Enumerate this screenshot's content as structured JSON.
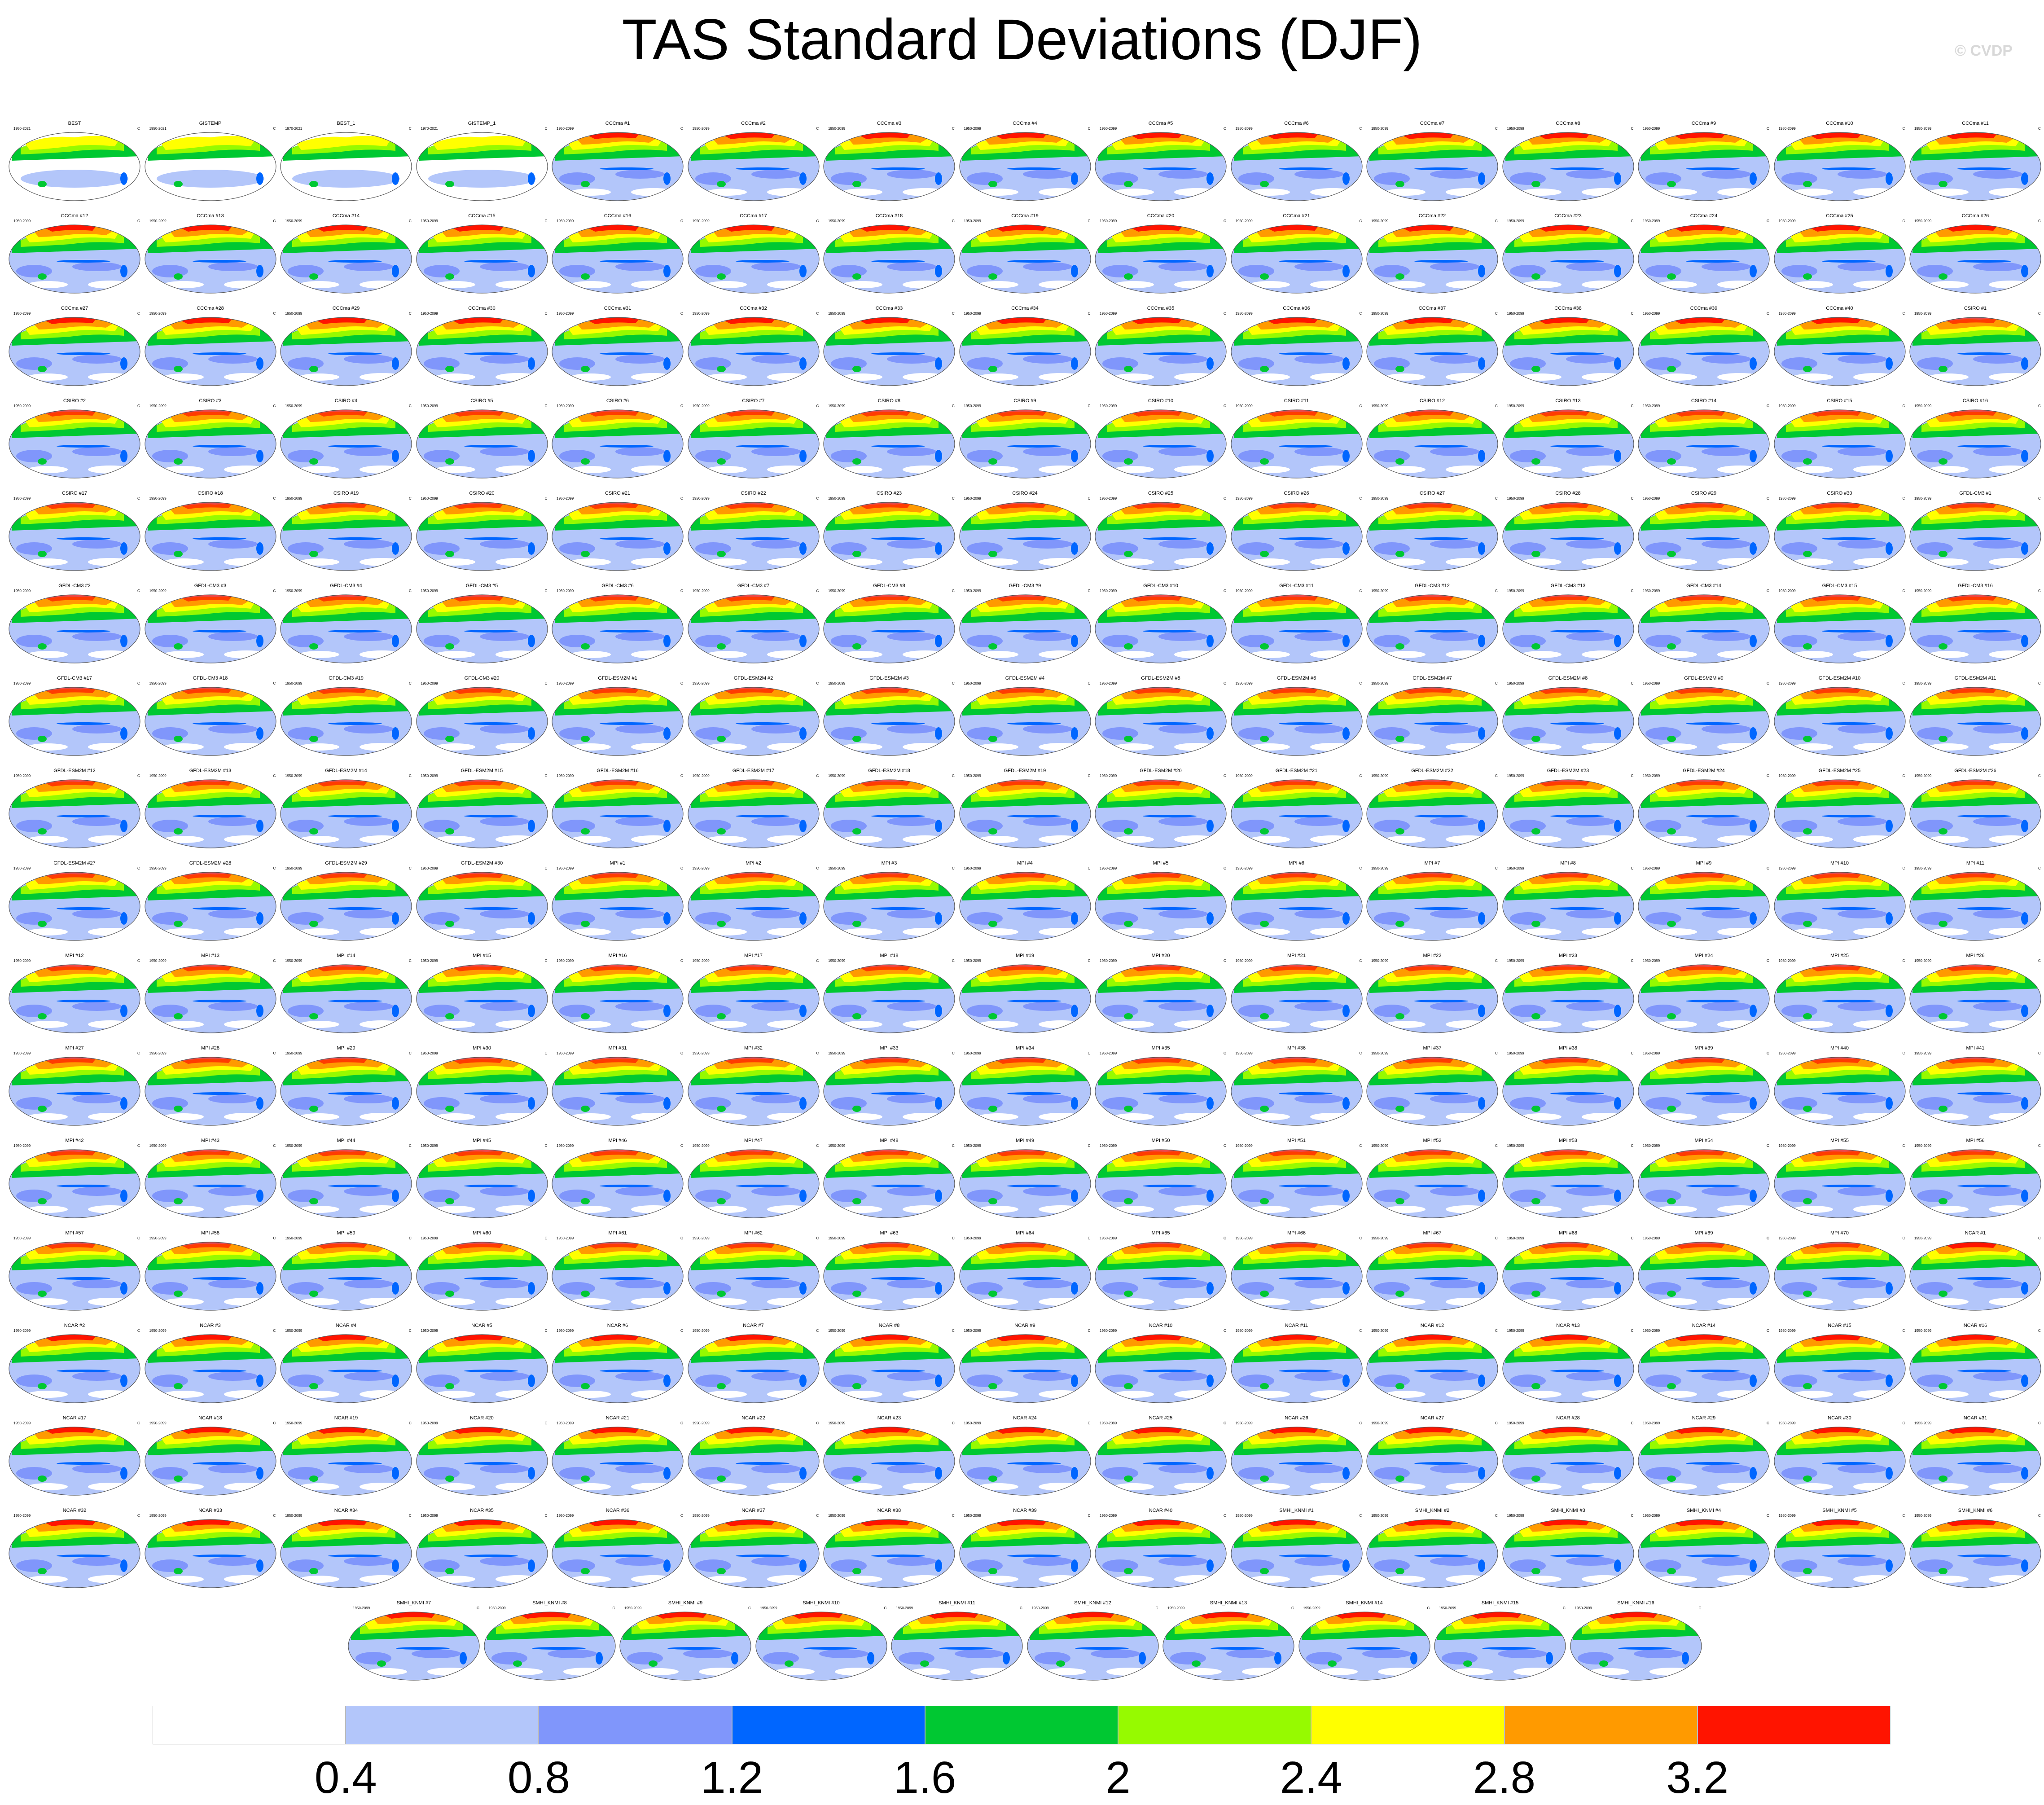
{
  "title": "TAS Standard Deviations (DJF)",
  "credit": "© CVDP",
  "unit": "C",
  "panels": [
    {
      "name": "BEST",
      "years": "1950-2021"
    },
    {
      "name": "GISTEMP",
      "years": "1950-2021"
    },
    {
      "name": "BEST_1",
      "years": "1970-2021"
    },
    {
      "name": "GISTEMP_1",
      "years": "1970-2021"
    },
    {
      "name": "CCCma #1",
      "years": "1950-2099"
    },
    {
      "name": "CCCma #2",
      "years": "1950-2099"
    },
    {
      "name": "CCCma #3",
      "years": "1950-2099"
    },
    {
      "name": "CCCma #4",
      "years": "1950-2099"
    },
    {
      "name": "CCCma #5",
      "years": "1950-2099"
    },
    {
      "name": "CCCma #6",
      "years": "1950-2099"
    },
    {
      "name": "CCCma #7",
      "years": "1950-2099"
    },
    {
      "name": "CCCma #8",
      "years": "1950-2099"
    },
    {
      "name": "CCCma #9",
      "years": "1950-2099"
    },
    {
      "name": "CCCma #10",
      "years": "1950-2099"
    },
    {
      "name": "CCCma #11",
      "years": "1950-2099"
    },
    {
      "name": "CCCma #12",
      "years": "1950-2099"
    },
    {
      "name": "CCCma #13",
      "years": "1950-2099"
    },
    {
      "name": "CCCma #14",
      "years": "1950-2099"
    },
    {
      "name": "CCCma #15",
      "years": "1950-2099"
    },
    {
      "name": "CCCma #16",
      "years": "1950-2099"
    },
    {
      "name": "CCCma #17",
      "years": "1950-2099"
    },
    {
      "name": "CCCma #18",
      "years": "1950-2099"
    },
    {
      "name": "CCCma #19",
      "years": "1950-2099"
    },
    {
      "name": "CCCma #20",
      "years": "1950-2099"
    },
    {
      "name": "CCCma #21",
      "years": "1950-2099"
    },
    {
      "name": "CCCma #22",
      "years": "1950-2099"
    },
    {
      "name": "CCCma #23",
      "years": "1950-2099"
    },
    {
      "name": "CCCma #24",
      "years": "1950-2099"
    },
    {
      "name": "CCCma #25",
      "years": "1950-2099"
    },
    {
      "name": "CCCma #26",
      "years": "1950-2099"
    },
    {
      "name": "CCCma #27",
      "years": "1950-2099"
    },
    {
      "name": "CCCma #28",
      "years": "1950-2099"
    },
    {
      "name": "CCCma #29",
      "years": "1950-2099"
    },
    {
      "name": "CCCma #30",
      "years": "1950-2099"
    },
    {
      "name": "CCCma #31",
      "years": "1950-2099"
    },
    {
      "name": "CCCma #32",
      "years": "1950-2099"
    },
    {
      "name": "CCCma #33",
      "years": "1950-2099"
    },
    {
      "name": "CCCma #34",
      "years": "1950-2099"
    },
    {
      "name": "CCCma #35",
      "years": "1950-2099"
    },
    {
      "name": "CCCma #36",
      "years": "1950-2099"
    },
    {
      "name": "CCCma #37",
      "years": "1950-2099"
    },
    {
      "name": "CCCma #38",
      "years": "1950-2099"
    },
    {
      "name": "CCCma #39",
      "years": "1950-2099"
    },
    {
      "name": "CCCma #40",
      "years": "1950-2099"
    },
    {
      "name": "CSIRO #1",
      "years": "1950-2099"
    },
    {
      "name": "CSIRO #2",
      "years": "1950-2099"
    },
    {
      "name": "CSIRO #3",
      "years": "1950-2099"
    },
    {
      "name": "CSIRO #4",
      "years": "1950-2099"
    },
    {
      "name": "CSIRO #5",
      "years": "1950-2099"
    },
    {
      "name": "CSIRO #6",
      "years": "1950-2099"
    },
    {
      "name": "CSIRO #7",
      "years": "1950-2099"
    },
    {
      "name": "CSIRO #8",
      "years": "1950-2099"
    },
    {
      "name": "CSIRO #9",
      "years": "1950-2099"
    },
    {
      "name": "CSIRO #10",
      "years": "1950-2099"
    },
    {
      "name": "CSIRO #11",
      "years": "1950-2099"
    },
    {
      "name": "CSIRO #12",
      "years": "1950-2099"
    },
    {
      "name": "CSIRO #13",
      "years": "1950-2099"
    },
    {
      "name": "CSIRO #14",
      "years": "1950-2099"
    },
    {
      "name": "CSIRO #15",
      "years": "1950-2099"
    },
    {
      "name": "CSIRO #16",
      "years": "1950-2099"
    },
    {
      "name": "CSIRO #17",
      "years": "1950-2099"
    },
    {
      "name": "CSIRO #18",
      "years": "1950-2099"
    },
    {
      "name": "CSIRO #19",
      "years": "1950-2099"
    },
    {
      "name": "CSIRO #20",
      "years": "1950-2099"
    },
    {
      "name": "CSIRO #21",
      "years": "1950-2099"
    },
    {
      "name": "CSIRO #22",
      "years": "1950-2099"
    },
    {
      "name": "CSIRO #23",
      "years": "1950-2099"
    },
    {
      "name": "CSIRO #24",
      "years": "1950-2099"
    },
    {
      "name": "CSIRO #25",
      "years": "1950-2099"
    },
    {
      "name": "CSIRO #26",
      "years": "1950-2099"
    },
    {
      "name": "CSIRO #27",
      "years": "1950-2099"
    },
    {
      "name": "CSIRO #28",
      "years": "1950-2099"
    },
    {
      "name": "CSIRO #29",
      "years": "1950-2099"
    },
    {
      "name": "CSIRO #30",
      "years": "1950-2099"
    },
    {
      "name": "GFDL-CM3 #1",
      "years": "1950-2099"
    },
    {
      "name": "GFDL-CM3 #2",
      "years": "1950-2099"
    },
    {
      "name": "GFDL-CM3 #3",
      "years": "1950-2099"
    },
    {
      "name": "GFDL-CM3 #4",
      "years": "1950-2099"
    },
    {
      "name": "GFDL-CM3 #5",
      "years": "1950-2099"
    },
    {
      "name": "GFDL-CM3 #6",
      "years": "1950-2099"
    },
    {
      "name": "GFDL-CM3 #7",
      "years": "1950-2099"
    },
    {
      "name": "GFDL-CM3 #8",
      "years": "1950-2099"
    },
    {
      "name": "GFDL-CM3 #9",
      "years": "1950-2099"
    },
    {
      "name": "GFDL-CM3 #10",
      "years": "1950-2099"
    },
    {
      "name": "GFDL-CM3 #11",
      "years": "1950-2099"
    },
    {
      "name": "GFDL-CM3 #12",
      "years": "1950-2099"
    },
    {
      "name": "GFDL-CM3 #13",
      "years": "1950-2099"
    },
    {
      "name": "GFDL-CM3 #14",
      "years": "1950-2099"
    },
    {
      "name": "GFDL-CM3 #15",
      "years": "1950-2099"
    },
    {
      "name": "GFDL-CM3 #16",
      "years": "1950-2099"
    },
    {
      "name": "GFDL-CM3 #17",
      "years": "1950-2099"
    },
    {
      "name": "GFDL-CM3 #18",
      "years": "1950-2099"
    },
    {
      "name": "GFDL-CM3 #19",
      "years": "1950-2099"
    },
    {
      "name": "GFDL-CM3 #20",
      "years": "1950-2099"
    },
    {
      "name": "GFDL-ESM2M #1",
      "years": "1950-2099"
    },
    {
      "name": "GFDL-ESM2M #2",
      "years": "1950-2099"
    },
    {
      "name": "GFDL-ESM2M #3",
      "years": "1950-2099"
    },
    {
      "name": "GFDL-ESM2M #4",
      "years": "1950-2099"
    },
    {
      "name": "GFDL-ESM2M #5",
      "years": "1950-2099"
    },
    {
      "name": "GFDL-ESM2M #6",
      "years": "1950-2099"
    },
    {
      "name": "GFDL-ESM2M #7",
      "years": "1950-2099"
    },
    {
      "name": "GFDL-ESM2M #8",
      "years": "1950-2099"
    },
    {
      "name": "GFDL-ESM2M #9",
      "years": "1950-2099"
    },
    {
      "name": "GFDL-ESM2M #10",
      "years": "1950-2099"
    },
    {
      "name": "GFDL-ESM2M #11",
      "years": "1950-2099"
    },
    {
      "name": "GFDL-ESM2M #12",
      "years": "1950-2099"
    },
    {
      "name": "GFDL-ESM2M #13",
      "years": "1950-2099"
    },
    {
      "name": "GFDL-ESM2M #14",
      "years": "1950-2099"
    },
    {
      "name": "GFDL-ESM2M #15",
      "years": "1950-2099"
    },
    {
      "name": "GFDL-ESM2M #16",
      "years": "1950-2099"
    },
    {
      "name": "GFDL-ESM2M #17",
      "years": "1950-2099"
    },
    {
      "name": "GFDL-ESM2M #18",
      "years": "1950-2099"
    },
    {
      "name": "GFDL-ESM2M #19",
      "years": "1950-2099"
    },
    {
      "name": "GFDL-ESM2M #20",
      "years": "1950-2099"
    },
    {
      "name": "GFDL-ESM2M #21",
      "years": "1950-2099"
    },
    {
      "name": "GFDL-ESM2M #22",
      "years": "1950-2099"
    },
    {
      "name": "GFDL-ESM2M #23",
      "years": "1950-2099"
    },
    {
      "name": "GFDL-ESM2M #24",
      "years": "1950-2099"
    },
    {
      "name": "GFDL-ESM2M #25",
      "years": "1950-2099"
    },
    {
      "name": "GFDL-ESM2M #26",
      "years": "1950-2099"
    },
    {
      "name": "GFDL-ESM2M #27",
      "years": "1950-2099"
    },
    {
      "name": "GFDL-ESM2M #28",
      "years": "1950-2099"
    },
    {
      "name": "GFDL-ESM2M #29",
      "years": "1950-2099"
    },
    {
      "name": "GFDL-ESM2M #30",
      "years": "1950-2099"
    },
    {
      "name": "MPI #1",
      "years": "1950-2099"
    },
    {
      "name": "MPI #2",
      "years": "1950-2099"
    },
    {
      "name": "MPI #3",
      "years": "1950-2099"
    },
    {
      "name": "MPI #4",
      "years": "1950-2099"
    },
    {
      "name": "MPI #5",
      "years": "1950-2099"
    },
    {
      "name": "MPI #6",
      "years": "1950-2099"
    },
    {
      "name": "MPI #7",
      "years": "1950-2099"
    },
    {
      "name": "MPI #8",
      "years": "1950-2099"
    },
    {
      "name": "MPI #9",
      "years": "1950-2099"
    },
    {
      "name": "MPI #10",
      "years": "1950-2099"
    },
    {
      "name": "MPI #11",
      "years": "1950-2099"
    },
    {
      "name": "MPI #12",
      "years": "1950-2099"
    },
    {
      "name": "MPI #13",
      "years": "1950-2099"
    },
    {
      "name": "MPI #14",
      "years": "1950-2099"
    },
    {
      "name": "MPI #15",
      "years": "1950-2099"
    },
    {
      "name": "MPI #16",
      "years": "1950-2099"
    },
    {
      "name": "MPI #17",
      "years": "1950-2099"
    },
    {
      "name": "MPI #18",
      "years": "1950-2099"
    },
    {
      "name": "MPI #19",
      "years": "1950-2099"
    },
    {
      "name": "MPI #20",
      "years": "1950-2099"
    },
    {
      "name": "MPI #21",
      "years": "1950-2099"
    },
    {
      "name": "MPI #22",
      "years": "1950-2099"
    },
    {
      "name": "MPI #23",
      "years": "1950-2099"
    },
    {
      "name": "MPI #24",
      "years": "1950-2099"
    },
    {
      "name": "MPI #25",
      "years": "1950-2099"
    },
    {
      "name": "MPI #26",
      "years": "1950-2099"
    },
    {
      "name": "MPI #27",
      "years": "1950-2099"
    },
    {
      "name": "MPI #28",
      "years": "1950-2099"
    },
    {
      "name": "MPI #29",
      "years": "1950-2099"
    },
    {
      "name": "MPI #30",
      "years": "1950-2099"
    },
    {
      "name": "MPI #31",
      "years": "1950-2099"
    },
    {
      "name": "MPI #32",
      "years": "1950-2099"
    },
    {
      "name": "MPI #33",
      "years": "1950-2099"
    },
    {
      "name": "MPI #34",
      "years": "1950-2099"
    },
    {
      "name": "MPI #35",
      "years": "1950-2099"
    },
    {
      "name": "MPI #36",
      "years": "1950-2099"
    },
    {
      "name": "MPI #37",
      "years": "1950-2099"
    },
    {
      "name": "MPI #38",
      "years": "1950-2099"
    },
    {
      "name": "MPI #39",
      "years": "1950-2099"
    },
    {
      "name": "MPI #40",
      "years": "1950-2099"
    },
    {
      "name": "MPI #41",
      "years": "1950-2099"
    },
    {
      "name": "MPI #42",
      "years": "1950-2099"
    },
    {
      "name": "MPI #43",
      "years": "1950-2099"
    },
    {
      "name": "MPI #44",
      "years": "1950-2099"
    },
    {
      "name": "MPI #45",
      "years": "1950-2099"
    },
    {
      "name": "MPI #46",
      "years": "1950-2099"
    },
    {
      "name": "MPI #47",
      "years": "1950-2099"
    },
    {
      "name": "MPI #48",
      "years": "1950-2099"
    },
    {
      "name": "MPI #49",
      "years": "1950-2099"
    },
    {
      "name": "MPI #50",
      "years": "1950-2099"
    },
    {
      "name": "MPI #51",
      "years": "1950-2099"
    },
    {
      "name": "MPI #52",
      "years": "1950-2099"
    },
    {
      "name": "MPI #53",
      "years": "1950-2099"
    },
    {
      "name": "MPI #54",
      "years": "1950-2099"
    },
    {
      "name": "MPI #55",
      "years": "1950-2099"
    },
    {
      "name": "MPI #56",
      "years": "1950-2099"
    },
    {
      "name": "MPI #57",
      "years": "1950-2099"
    },
    {
      "name": "MPI #58",
      "years": "1950-2099"
    },
    {
      "name": "MPI #59",
      "years": "1950-2099"
    },
    {
      "name": "MPI #60",
      "years": "1950-2099"
    },
    {
      "name": "MPI #61",
      "years": "1950-2099"
    },
    {
      "name": "MPI #62",
      "years": "1950-2099"
    },
    {
      "name": "MPI #63",
      "years": "1950-2099"
    },
    {
      "name": "MPI #64",
      "years": "1950-2099"
    },
    {
      "name": "MPI #65",
      "years": "1950-2099"
    },
    {
      "name": "MPI #66",
      "years": "1950-2099"
    },
    {
      "name": "MPI #67",
      "years": "1950-2099"
    },
    {
      "name": "MPI #68",
      "years": "1950-2099"
    },
    {
      "name": "MPI #69",
      "years": "1950-2099"
    },
    {
      "name": "MPI #70",
      "years": "1950-2099"
    },
    {
      "name": "NCAR #1",
      "years": "1950-2099"
    },
    {
      "name": "NCAR #2",
      "years": "1950-2099"
    },
    {
      "name": "NCAR #3",
      "years": "1950-2099"
    },
    {
      "name": "NCAR #4",
      "years": "1950-2099"
    },
    {
      "name": "NCAR #5",
      "years": "1950-2099"
    },
    {
      "name": "NCAR #6",
      "years": "1950-2099"
    },
    {
      "name": "NCAR #7",
      "years": "1950-2099"
    },
    {
      "name": "NCAR #8",
      "years": "1950-2099"
    },
    {
      "name": "NCAR #9",
      "years": "1950-2099"
    },
    {
      "name": "NCAR #10",
      "years": "1950-2099"
    },
    {
      "name": "NCAR #11",
      "years": "1950-2099"
    },
    {
      "name": "NCAR #12",
      "years": "1950-2099"
    },
    {
      "name": "NCAR #13",
      "years": "1950-2099"
    },
    {
      "name": "NCAR #14",
      "years": "1950-2099"
    },
    {
      "name": "NCAR #15",
      "years": "1950-2099"
    },
    {
      "name": "NCAR #16",
      "years": "1950-2099"
    },
    {
      "name": "NCAR #17",
      "years": "1950-2099"
    },
    {
      "name": "NCAR #18",
      "years": "1950-2099"
    },
    {
      "name": "NCAR #19",
      "years": "1950-2099"
    },
    {
      "name": "NCAR #20",
      "years": "1950-2099"
    },
    {
      "name": "NCAR #21",
      "years": "1950-2099"
    },
    {
      "name": "NCAR #22",
      "years": "1950-2099"
    },
    {
      "name": "NCAR #23",
      "years": "1950-2099"
    },
    {
      "name": "NCAR #24",
      "years": "1950-2099"
    },
    {
      "name": "NCAR #25",
      "years": "1950-2099"
    },
    {
      "name": "NCAR #26",
      "years": "1950-2099"
    },
    {
      "name": "NCAR #27",
      "years": "1950-2099"
    },
    {
      "name": "NCAR #28",
      "years": "1950-2099"
    },
    {
      "name": "NCAR #29",
      "years": "1950-2099"
    },
    {
      "name": "NCAR #30",
      "years": "1950-2099"
    },
    {
      "name": "NCAR #31",
      "years": "1950-2099"
    },
    {
      "name": "NCAR #32",
      "years": "1950-2099"
    },
    {
      "name": "NCAR #33",
      "years": "1950-2099"
    },
    {
      "name": "NCAR #34",
      "years": "1950-2099"
    },
    {
      "name": "NCAR #35",
      "years": "1950-2099"
    },
    {
      "name": "NCAR #36",
      "years": "1950-2099"
    },
    {
      "name": "NCAR #37",
      "years": "1950-2099"
    },
    {
      "name": "NCAR #38",
      "years": "1950-2099"
    },
    {
      "name": "NCAR #39",
      "years": "1950-2099"
    },
    {
      "name": "NCAR #40",
      "years": "1950-2099"
    },
    {
      "name": "SMHI_KNMI #1",
      "years": "1950-2099"
    },
    {
      "name": "SMHI_KNMI #2",
      "years": "1950-2099"
    },
    {
      "name": "SMHI_KNMI #3",
      "years": "1950-2099"
    },
    {
      "name": "SMHI_KNMI #4",
      "years": "1950-2099"
    },
    {
      "name": "SMHI_KNMI #5",
      "years": "1950-2099"
    },
    {
      "name": "SMHI_KNMI #6",
      "years": "1950-2099"
    },
    {
      "name": "SMHI_KNMI #7",
      "years": "1950-2099"
    },
    {
      "name": "SMHI_KNMI #8",
      "years": "1950-2099"
    },
    {
      "name": "SMHI_KNMI #9",
      "years": "1950-2099"
    },
    {
      "name": "SMHI_KNMI #10",
      "years": "1950-2099"
    },
    {
      "name": "SMHI_KNMI #11",
      "years": "1950-2099"
    },
    {
      "name": "SMHI_KNMI #12",
      "years": "1950-2099"
    },
    {
      "name": "SMHI_KNMI #13",
      "years": "1950-2099"
    },
    {
      "name": "SMHI_KNMI #14",
      "years": "1950-2099"
    },
    {
      "name": "SMHI_KNMI #15",
      "years": "1950-2099"
    },
    {
      "name": "SMHI_KNMI #16",
      "years": "1950-2099"
    }
  ],
  "colorbar": {
    "colors": [
      "#ffffff",
      "#b3c6fa",
      "#8096fb",
      "#0066ff",
      "#00c832",
      "#96fa00",
      "#ffff00",
      "#ff9a00",
      "#ff1400"
    ],
    "ticks": [
      "0.4",
      "0.8",
      "1.2",
      "1.6",
      "2",
      "2.4",
      "2.8",
      "3.2"
    ]
  }
}
